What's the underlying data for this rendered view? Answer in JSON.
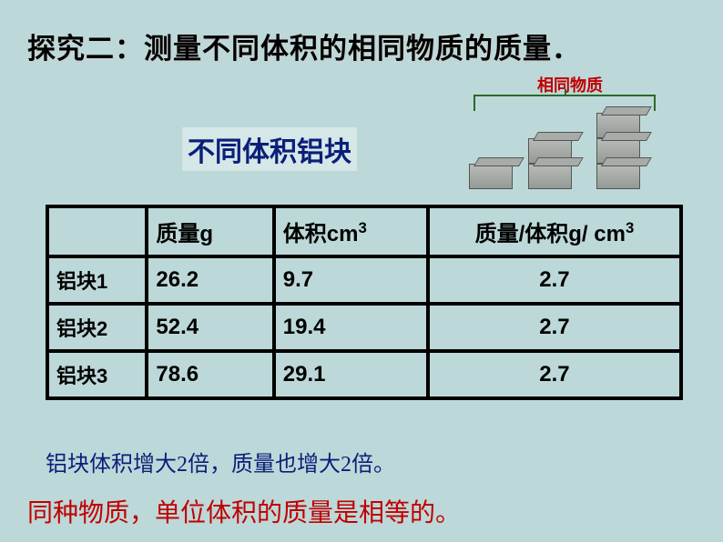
{
  "title": "探究二：测量不同体积的相同物质的质量．",
  "subtitle": "不同体积铝块",
  "diagram_label": "相同物质",
  "table": {
    "headers": {
      "blank": "",
      "mass": "质量g",
      "volume": "体积cm",
      "volume_sup": "3",
      "ratio": "质量/体积g/ cm",
      "ratio_sup": "3"
    },
    "rows": [
      {
        "label": "铝块1",
        "mass": "26.2",
        "volume": "9.7",
        "ratio": "2.7"
      },
      {
        "label": "铝块2",
        "mass": "52.4",
        "volume": "19.4",
        "ratio": "2.7"
      },
      {
        "label": "铝块3",
        "mass": "78.6",
        "volume": "29.1",
        "ratio": "2.7"
      }
    ]
  },
  "note1": "铝块体积增大2倍，质量也增大2倍。",
  "note2": "同种物质，单位体积的质量是相等的。",
  "colors": {
    "bg": "#bdd8d8",
    "title_text": "#000000",
    "subtitle_text": "#0a1f7a",
    "diagram_label": "#c00000",
    "ratio_text": "#b00000",
    "note1_text": "#0a1f7a",
    "note2_text": "#c00000",
    "table_border": "#000000"
  }
}
